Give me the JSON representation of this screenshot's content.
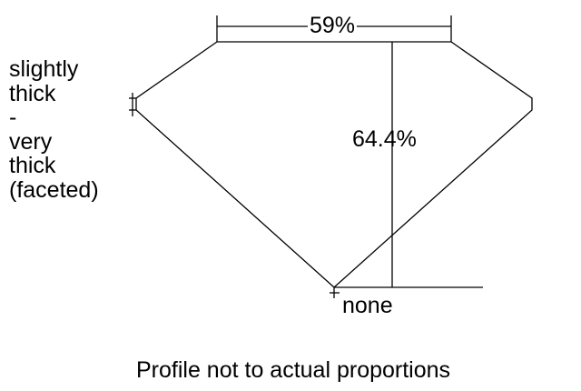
{
  "girdle_label": [
    "slightly",
    "thick",
    "-",
    "very",
    "thick",
    "(faceted)"
  ],
  "table_percentage": "59%",
  "depth_percentage": "64.4%",
  "culet_label": "none",
  "caption": "Profile not to actual proportions",
  "line_color": "#000000"
}
